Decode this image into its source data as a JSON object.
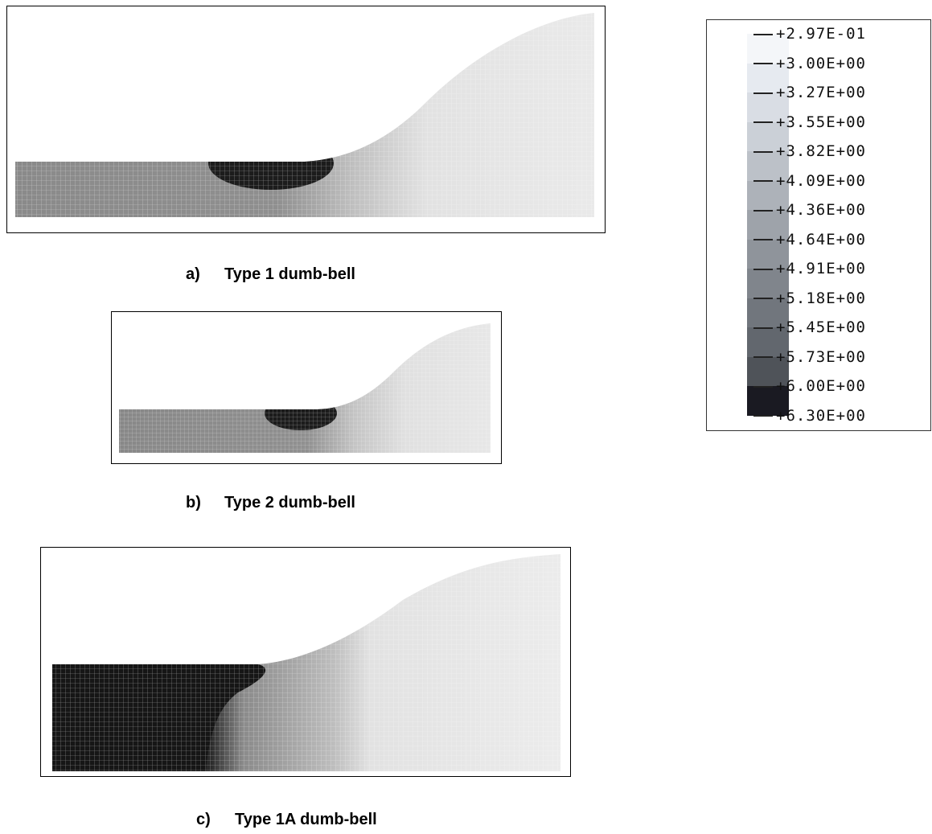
{
  "panels": [
    {
      "id": "a",
      "label": "a)",
      "title": "Type 1 dumb-bell"
    },
    {
      "id": "b",
      "label": "b)",
      "title": "Type 2 dumb-bell"
    },
    {
      "id": "c",
      "label": "c)",
      "title": "Type 1A dumb-bell"
    }
  ],
  "legend": {
    "values": [
      "+2.97E-01",
      "+3.00E+00",
      "+3.27E+00",
      "+3.55E+00",
      "+3.82E+00",
      "+4.09E+00",
      "+4.36E+00",
      "+4.64E+00",
      "+4.91E+00",
      "+5.18E+00",
      "+5.45E+00",
      "+5.73E+00",
      "+6.00E+00",
      "+6.30E+00"
    ],
    "colors": [
      "#f4f6f9",
      "#e6eaf0",
      "#d9dde4",
      "#cbd0d7",
      "#bcc1c8",
      "#adb2b9",
      "#9ea3aa",
      "#8f949b",
      "#80858c",
      "#71767d",
      "#62676e",
      "#4f5359",
      "#1a1a22"
    ]
  },
  "colors": {
    "mesh_light": "#e4e4e4",
    "mesh_mid": "#b8b8b8",
    "mesh_dark": "#6a6a6a",
    "mesh_black": "#151515"
  }
}
